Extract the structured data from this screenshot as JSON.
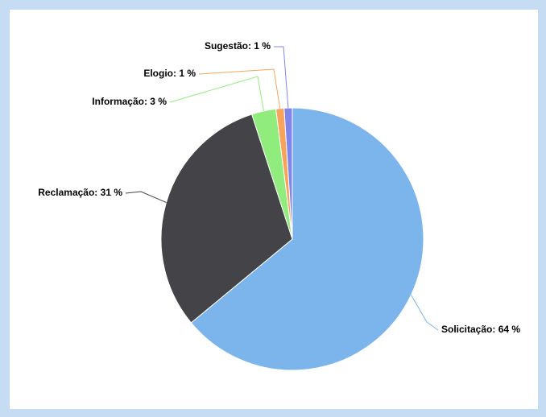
{
  "chart_data": {
    "type": "pie",
    "values": [
      64,
      31,
      3,
      1,
      1
    ],
    "value_labels": [
      "Solicitação: 64 %",
      "Reclamação: 31 %",
      "Informação: 3 %",
      "Elogio: 1 %",
      "Sugestão: 1 %"
    ],
    "colors": [
      "#7cb5ec",
      "#434348",
      "#90ed7d",
      "#f7a35c",
      "#8085e9"
    ]
  }
}
